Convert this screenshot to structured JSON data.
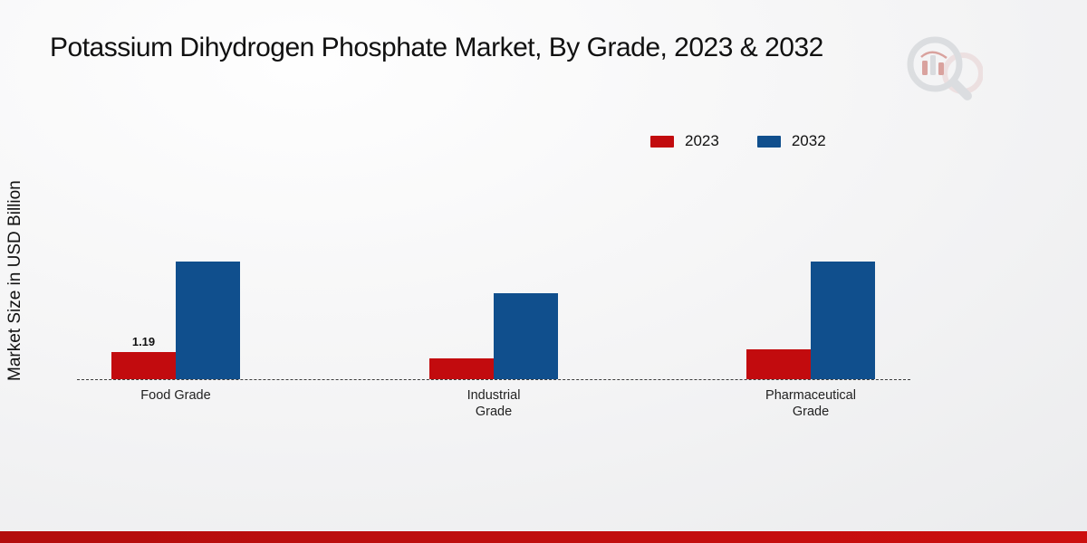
{
  "title": "Potassium Dihydrogen Phosphate Market, By Grade, 2023 & 2032",
  "y_axis_label": "Market Size in USD Billion",
  "legend": {
    "position": "top-right",
    "items": [
      {
        "label": "2023",
        "color": "#c20b0e"
      },
      {
        "label": "2032",
        "color": "#104f8d"
      }
    ]
  },
  "chart_data": {
    "type": "bar",
    "title": "Potassium Dihydrogen Phosphate Market, By Grade, 2023 & 2032",
    "xlabel": "",
    "ylabel": "Market Size in USD Billion",
    "units": "USD Billion",
    "categories": [
      "Food Grade",
      "Industrial Grade",
      "Pharmaceutical Grade"
    ],
    "series": [
      {
        "name": "2023",
        "color": "#c20b0e",
        "values": [
          1.19,
          0.9,
          1.3
        ],
        "data_labels": [
          "1.19",
          "",
          ""
        ]
      },
      {
        "name": "2032",
        "color": "#104f8d",
        "values": [
          5.2,
          3.8,
          5.2
        ],
        "data_labels": [
          "",
          "",
          ""
        ]
      }
    ],
    "grid": false,
    "baseline": "dashed",
    "legend_position": "top-right"
  }
}
